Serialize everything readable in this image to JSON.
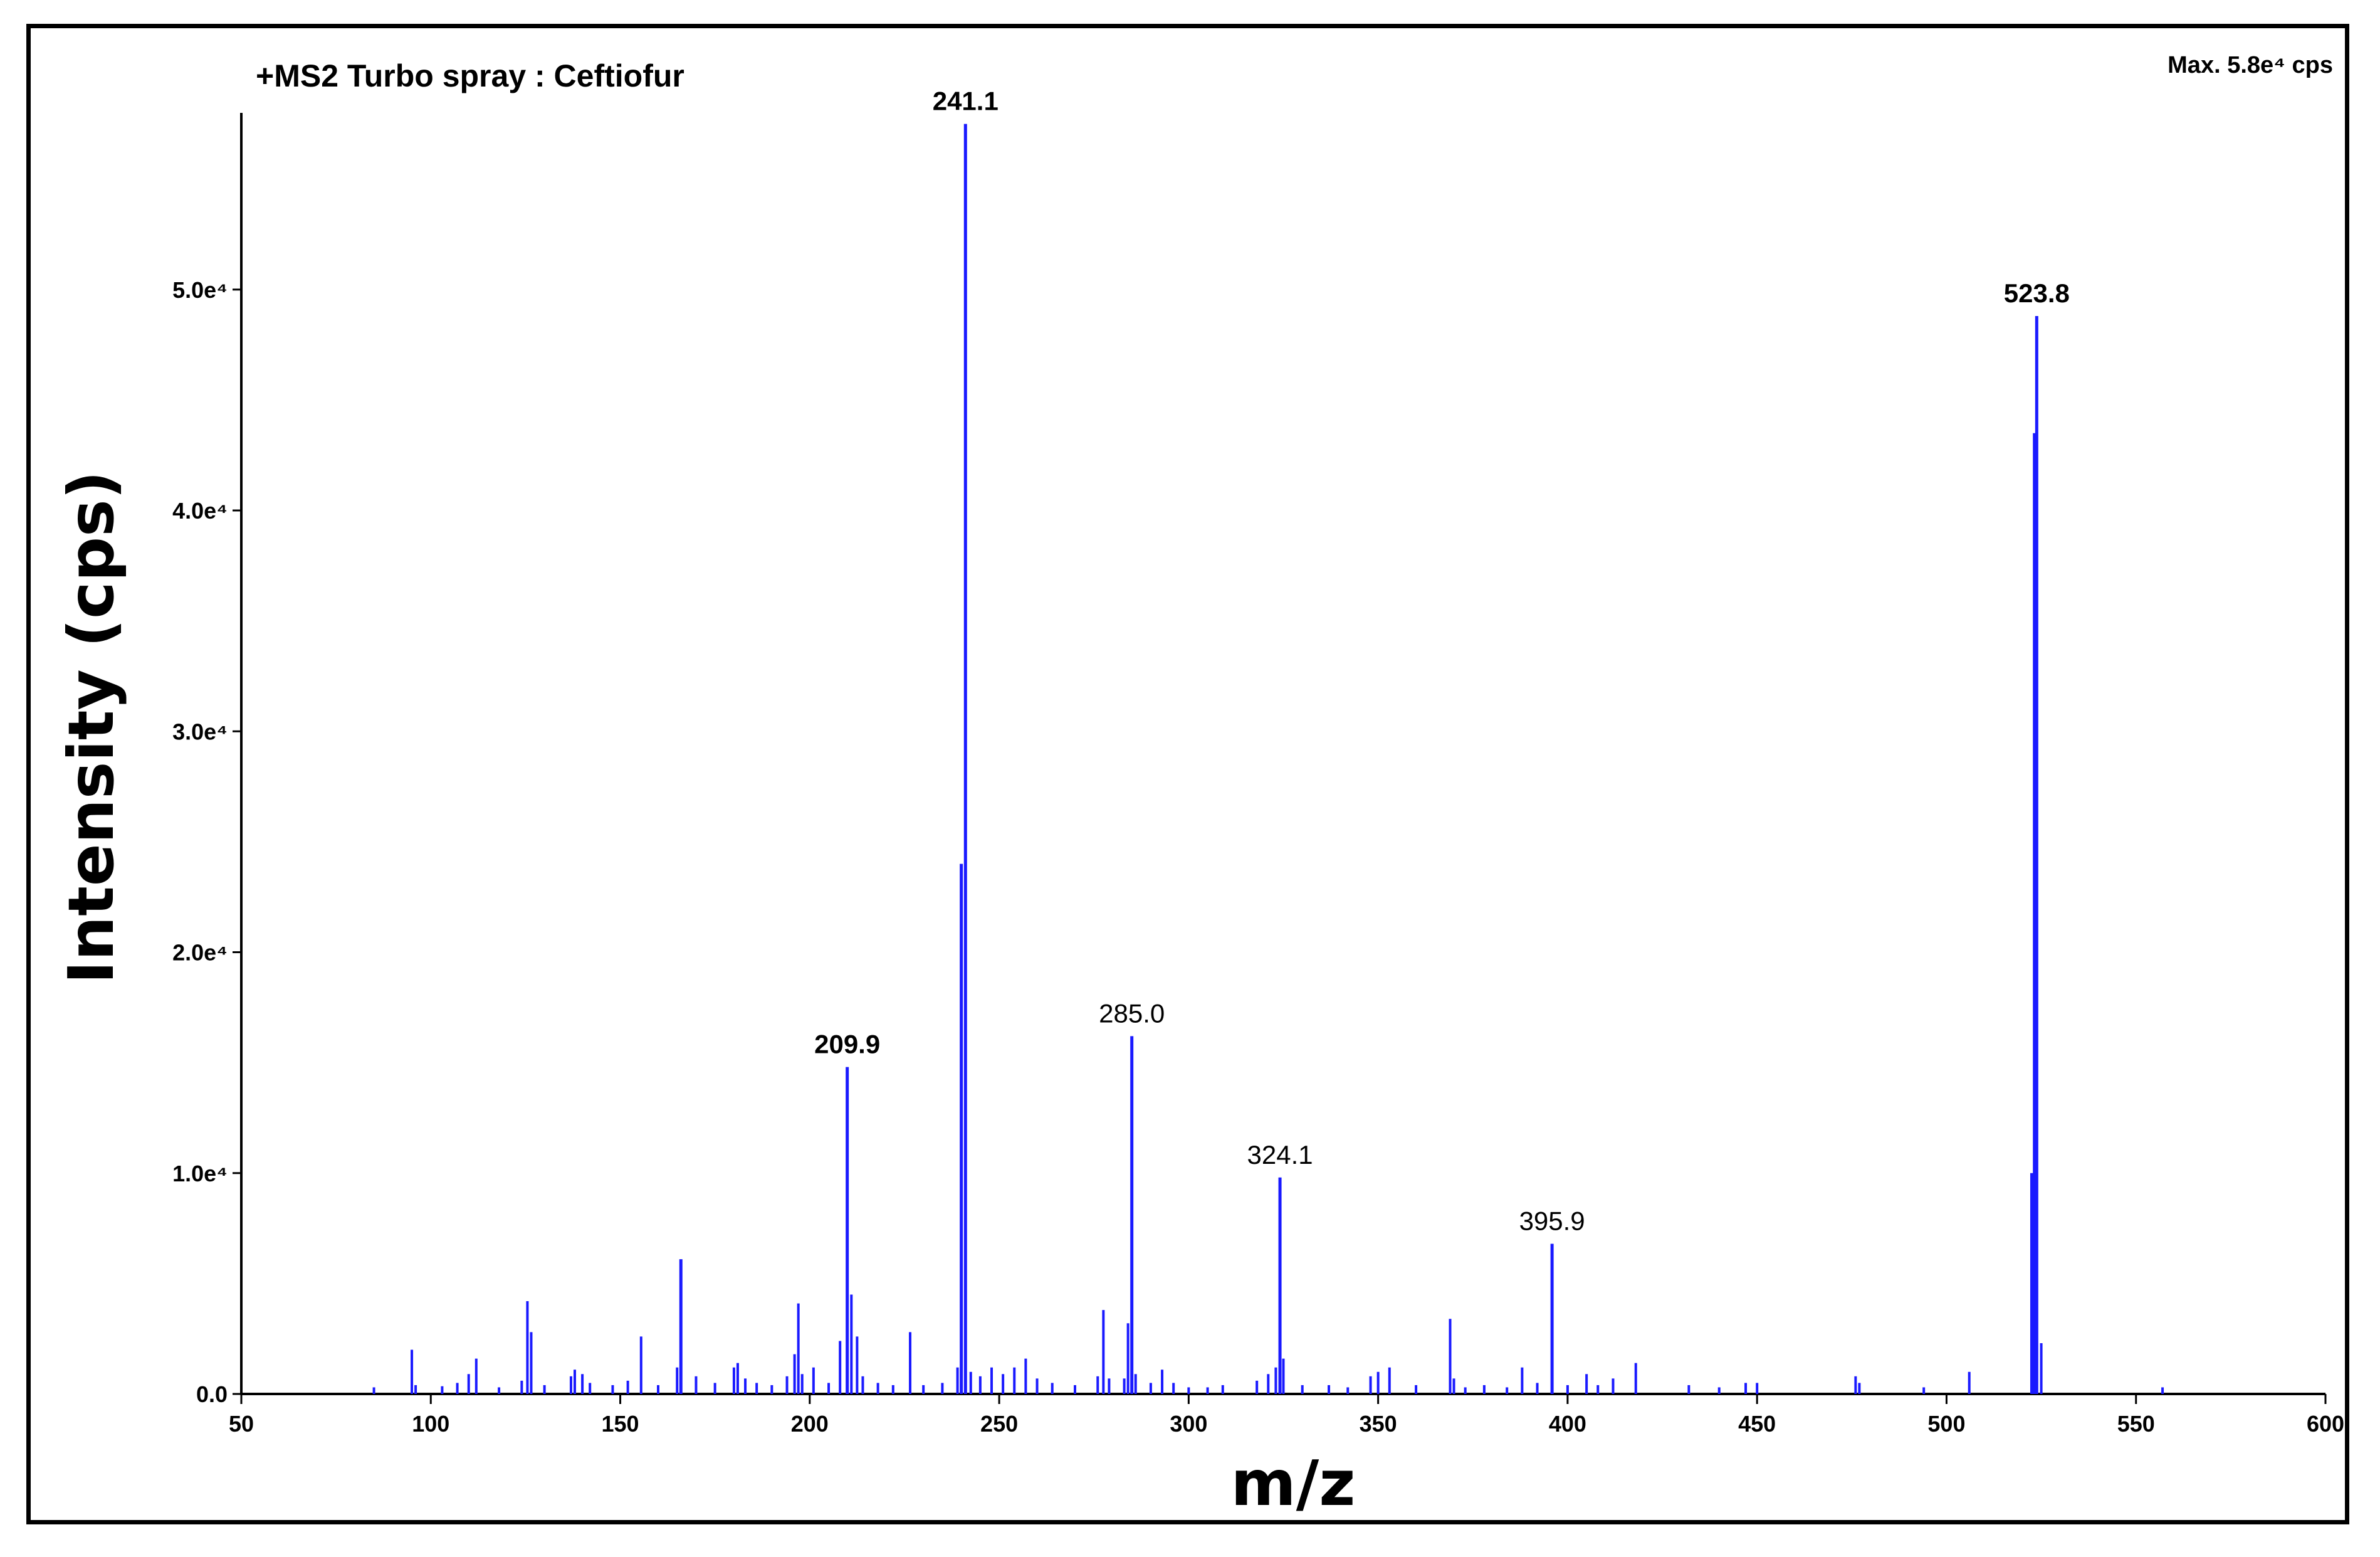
{
  "chart_data": {
    "type": "line",
    "subtype": "mass-spectrum-stick",
    "title": "+MS2 Turbo spray : Ceftiofur",
    "max_label": "Max. 5.8e⁴ cps",
    "xlabel": "m/z",
    "ylabel": "Intensity (cps)",
    "xlim": [
      50,
      600
    ],
    "ylim": [
      0,
      58000
    ],
    "grid": false,
    "line_color": "#1a1aff",
    "x_ticks": [
      {
        "value": 50,
        "label": "50"
      },
      {
        "value": 100,
        "label": "100"
      },
      {
        "value": 150,
        "label": "150"
      },
      {
        "value": 200,
        "label": "200"
      },
      {
        "value": 250,
        "label": "250"
      },
      {
        "value": 300,
        "label": "300"
      },
      {
        "value": 350,
        "label": "350"
      },
      {
        "value": 400,
        "label": "400"
      },
      {
        "value": 450,
        "label": "450"
      },
      {
        "value": 500,
        "label": "500"
      },
      {
        "value": 550,
        "label": "550"
      },
      {
        "value": 600,
        "label": "600"
      }
    ],
    "y_ticks": [
      {
        "value": 0,
        "label": "0.0"
      },
      {
        "value": 10000,
        "label": "1.0e⁴"
      },
      {
        "value": 20000,
        "label": "2.0e⁴"
      },
      {
        "value": 30000,
        "label": "3.0e⁴"
      },
      {
        "value": 40000,
        "label": "4.0e⁴"
      },
      {
        "value": 50000,
        "label": "5.0e⁴"
      }
    ],
    "annotations": [
      {
        "x": 209.9,
        "y": 14800,
        "label": "209.9",
        "bold": true
      },
      {
        "x": 241.1,
        "y": 57500,
        "label": "241.1",
        "bold": true
      },
      {
        "x": 285.0,
        "y": 16200,
        "label": "285.0",
        "bold": false
      },
      {
        "x": 324.1,
        "y": 9800,
        "label": "324.1",
        "bold": false
      },
      {
        "x": 395.9,
        "y": 6800,
        "label": "395.9",
        "bold": false
      },
      {
        "x": 523.8,
        "y": 48800,
        "label": "523.8",
        "bold": true
      }
    ],
    "peaks": [
      {
        "x": 85,
        "y": 300
      },
      {
        "x": 95,
        "y": 2000
      },
      {
        "x": 96,
        "y": 400
      },
      {
        "x": 103,
        "y": 350
      },
      {
        "x": 107,
        "y": 500
      },
      {
        "x": 110,
        "y": 900
      },
      {
        "x": 112,
        "y": 1600
      },
      {
        "x": 118,
        "y": 300
      },
      {
        "x": 124,
        "y": 600
      },
      {
        "x": 125.5,
        "y": 4200
      },
      {
        "x": 126.5,
        "y": 2800
      },
      {
        "x": 130,
        "y": 400
      },
      {
        "x": 137,
        "y": 800
      },
      {
        "x": 138,
        "y": 1100
      },
      {
        "x": 140,
        "y": 900
      },
      {
        "x": 142,
        "y": 500
      },
      {
        "x": 148,
        "y": 400
      },
      {
        "x": 152,
        "y": 600
      },
      {
        "x": 155.5,
        "y": 2600
      },
      {
        "x": 160,
        "y": 400
      },
      {
        "x": 165,
        "y": 1200
      },
      {
        "x": 166,
        "y": 6100
      },
      {
        "x": 170,
        "y": 800
      },
      {
        "x": 175,
        "y": 500
      },
      {
        "x": 180,
        "y": 1200
      },
      {
        "x": 181,
        "y": 1400
      },
      {
        "x": 183,
        "y": 700
      },
      {
        "x": 186,
        "y": 500
      },
      {
        "x": 190,
        "y": 400
      },
      {
        "x": 194,
        "y": 800
      },
      {
        "x": 196,
        "y": 1800
      },
      {
        "x": 197,
        "y": 4100
      },
      {
        "x": 198,
        "y": 900
      },
      {
        "x": 201,
        "y": 1200
      },
      {
        "x": 205,
        "y": 500
      },
      {
        "x": 208,
        "y": 2400
      },
      {
        "x": 209.9,
        "y": 14800
      },
      {
        "x": 211,
        "y": 4500
      },
      {
        "x": 212.5,
        "y": 2600
      },
      {
        "x": 214,
        "y": 800
      },
      {
        "x": 218,
        "y": 500
      },
      {
        "x": 222,
        "y": 400
      },
      {
        "x": 226.5,
        "y": 2800
      },
      {
        "x": 230,
        "y": 400
      },
      {
        "x": 235,
        "y": 500
      },
      {
        "x": 239,
        "y": 1200
      },
      {
        "x": 240,
        "y": 24000
      },
      {
        "x": 241.1,
        "y": 57500
      },
      {
        "x": 242.5,
        "y": 1000
      },
      {
        "x": 245,
        "y": 800
      },
      {
        "x": 248,
        "y": 1200
      },
      {
        "x": 251,
        "y": 900
      },
      {
        "x": 254,
        "y": 1200
      },
      {
        "x": 257,
        "y": 1600
      },
      {
        "x": 260,
        "y": 700
      },
      {
        "x": 264,
        "y": 500
      },
      {
        "x": 270,
        "y": 400
      },
      {
        "x": 276,
        "y": 800
      },
      {
        "x": 277.5,
        "y": 3800
      },
      {
        "x": 279,
        "y": 700
      },
      {
        "x": 283,
        "y": 700
      },
      {
        "x": 284,
        "y": 3200
      },
      {
        "x": 285.0,
        "y": 16200
      },
      {
        "x": 286,
        "y": 900
      },
      {
        "x": 290,
        "y": 500
      },
      {
        "x": 293,
        "y": 1100
      },
      {
        "x": 296,
        "y": 500
      },
      {
        "x": 300,
        "y": 300
      },
      {
        "x": 305,
        "y": 300
      },
      {
        "x": 309,
        "y": 400
      },
      {
        "x": 318,
        "y": 600
      },
      {
        "x": 321,
        "y": 900
      },
      {
        "x": 323,
        "y": 1200
      },
      {
        "x": 324.1,
        "y": 9800
      },
      {
        "x": 325,
        "y": 1600
      },
      {
        "x": 330,
        "y": 400
      },
      {
        "x": 337,
        "y": 400
      },
      {
        "x": 342,
        "y": 300
      },
      {
        "x": 348,
        "y": 800
      },
      {
        "x": 350,
        "y": 1000
      },
      {
        "x": 353,
        "y": 1200
      },
      {
        "x": 360,
        "y": 400
      },
      {
        "x": 369,
        "y": 3400
      },
      {
        "x": 370,
        "y": 700
      },
      {
        "x": 373,
        "y": 300
      },
      {
        "x": 378,
        "y": 400
      },
      {
        "x": 384,
        "y": 300
      },
      {
        "x": 388,
        "y": 1200
      },
      {
        "x": 392,
        "y": 500
      },
      {
        "x": 395.9,
        "y": 6800
      },
      {
        "x": 400,
        "y": 400
      },
      {
        "x": 405,
        "y": 900
      },
      {
        "x": 408,
        "y": 400
      },
      {
        "x": 412,
        "y": 700
      },
      {
        "x": 418,
        "y": 1400
      },
      {
        "x": 432,
        "y": 400
      },
      {
        "x": 440,
        "y": 300
      },
      {
        "x": 447,
        "y": 500
      },
      {
        "x": 450,
        "y": 500
      },
      {
        "x": 476,
        "y": 800
      },
      {
        "x": 477,
        "y": 500
      },
      {
        "x": 494,
        "y": 300
      },
      {
        "x": 506,
        "y": 1000
      },
      {
        "x": 522.5,
        "y": 10000
      },
      {
        "x": 523.2,
        "y": 43500
      },
      {
        "x": 523.8,
        "y": 48800
      },
      {
        "x": 525,
        "y": 2300
      },
      {
        "x": 557,
        "y": 300
      }
    ]
  }
}
